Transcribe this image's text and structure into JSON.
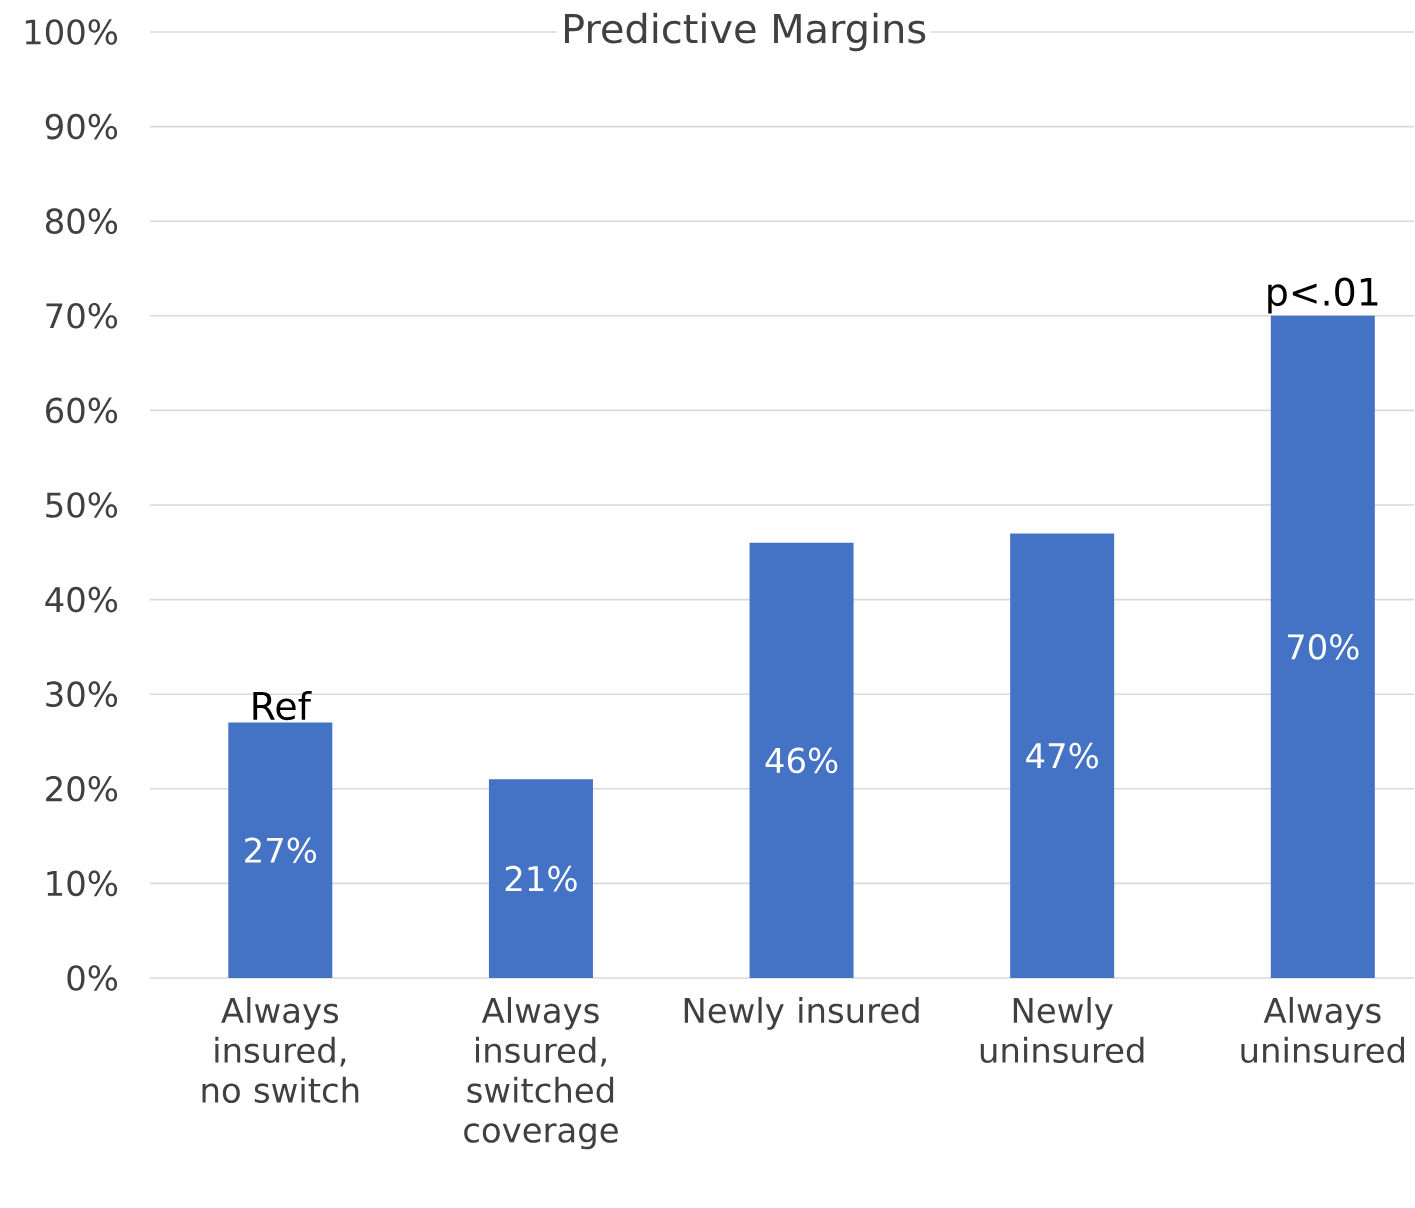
{
  "chart_data": {
    "type": "bar",
    "title": "Predictive Margins",
    "categories": [
      "Always insured, no switch",
      "Always insured, switched coverage",
      "Newly insured",
      "Newly uninsured",
      "Always uninsured"
    ],
    "values": [
      27,
      21,
      46,
      47,
      70
    ],
    "value_labels": [
      "27%",
      "21%",
      "46%",
      "47%",
      "70%"
    ],
    "color": "#4472c4",
    "ylim": [
      0,
      100
    ],
    "yticks": [
      {
        "value": 0,
        "label": "0%"
      },
      {
        "value": 10,
        "label": "10%"
      },
      {
        "value": 20,
        "label": "20%"
      },
      {
        "value": 30,
        "label": "30%"
      },
      {
        "value": 40,
        "label": "40%"
      },
      {
        "value": 50,
        "label": "50%"
      },
      {
        "value": 60,
        "label": "60%"
      },
      {
        "value": 70,
        "label": "70%"
      },
      {
        "value": 80,
        "label": "80%"
      },
      {
        "value": 90,
        "label": "90%"
      },
      {
        "value": 100,
        "label": "100%"
      }
    ],
    "grid": "y",
    "annotations": [
      {
        "text": "Ref",
        "x": "Always insured, no switch",
        "y": 27
      },
      {
        "text": "p<.01",
        "x": "Always uninsured",
        "y": 70
      }
    ]
  }
}
